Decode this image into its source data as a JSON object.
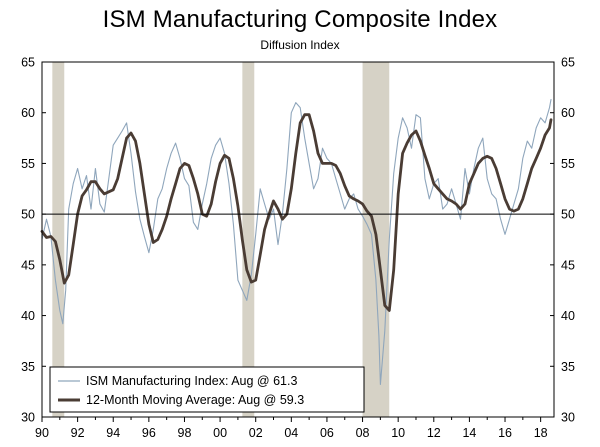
{
  "chart_data": {
    "type": "line",
    "title": "ISM Manufacturing Composite Index",
    "subtitle": "Diffusion Index",
    "xlabel": "",
    "ylabel": "",
    "ylim": [
      30,
      65
    ],
    "y_ticks": [
      "30",
      "35",
      "40",
      "45",
      "50",
      "55",
      "60",
      "65"
    ],
    "x_ticks": [
      "90",
      "92",
      "94",
      "96",
      "98",
      "00",
      "02",
      "04",
      "06",
      "08",
      "10",
      "12",
      "14",
      "16",
      "18"
    ],
    "x_tick_years": [
      1990,
      1992,
      1994,
      1996,
      1998,
      2000,
      2002,
      2004,
      2006,
      2008,
      2010,
      2012,
      2014,
      2016,
      2018
    ],
    "xlim": [
      1990.0,
      2018.75
    ],
    "reference_line": 50,
    "recessions": [
      [
        1990.58,
        1991.25
      ],
      [
        2001.25,
        2001.92
      ],
      [
        2008.0,
        2009.5
      ]
    ],
    "colors": {
      "ism": "#8fa6bc",
      "moving_average": "#4a3c34",
      "recession": "#d6d2c6",
      "axis": "#000000"
    },
    "series": [
      {
        "name": "ISM Manufacturing Index",
        "legend": "ISM Manufacturing Index: Aug @ 61.3",
        "x": [
          1990.0,
          1990.25,
          1990.5,
          1990.75,
          1991.0,
          1991.17,
          1991.33,
          1991.5,
          1991.75,
          1992.0,
          1992.25,
          1992.5,
          1992.75,
          1993.0,
          1993.25,
          1993.5,
          1993.75,
          1994.0,
          1994.25,
          1994.5,
          1994.75,
          1995.0,
          1995.25,
          1995.5,
          1995.75,
          1996.0,
          1996.25,
          1996.5,
          1996.75,
          1997.0,
          1997.25,
          1997.5,
          1997.75,
          1998.0,
          1998.25,
          1998.5,
          1998.75,
          1999.0,
          1999.25,
          1999.5,
          1999.75,
          2000.0,
          2000.25,
          2000.5,
          2000.75,
          2001.0,
          2001.25,
          2001.5,
          2001.75,
          2002.0,
          2002.25,
          2002.5,
          2002.75,
          2003.0,
          2003.25,
          2003.5,
          2003.75,
          2004.0,
          2004.25,
          2004.5,
          2004.75,
          2005.0,
          2005.25,
          2005.5,
          2005.75,
          2006.0,
          2006.25,
          2006.5,
          2006.75,
          2007.0,
          2007.25,
          2007.5,
          2007.75,
          2008.0,
          2008.25,
          2008.5,
          2008.75,
          2008.92,
          2009.0,
          2009.25,
          2009.5,
          2009.75,
          2010.0,
          2010.25,
          2010.5,
          2010.75,
          2011.0,
          2011.25,
          2011.5,
          2011.75,
          2012.0,
          2012.25,
          2012.5,
          2012.75,
          2013.0,
          2013.25,
          2013.5,
          2013.75,
          2014.0,
          2014.25,
          2014.5,
          2014.75,
          2015.0,
          2015.25,
          2015.5,
          2015.75,
          2016.0,
          2016.25,
          2016.5,
          2016.75,
          2017.0,
          2017.25,
          2017.5,
          2017.75,
          2018.0,
          2018.25,
          2018.5,
          2018.58
        ],
        "y": [
          47.5,
          49.5,
          47.8,
          43.5,
          40.5,
          39.2,
          42.5,
          50.5,
          53.0,
          54.5,
          52.5,
          53.8,
          50.5,
          54.5,
          51.0,
          50.2,
          53.5,
          56.8,
          57.5,
          58.2,
          59.0,
          56.0,
          52.2,
          49.5,
          47.8,
          46.2,
          48.5,
          51.5,
          52.5,
          54.5,
          56.0,
          57.0,
          55.5,
          53.5,
          52.8,
          49.2,
          48.5,
          51.0,
          53.0,
          55.5,
          56.8,
          57.5,
          56.0,
          53.0,
          49.0,
          43.5,
          42.5,
          41.5,
          44.0,
          48.0,
          52.5,
          51.0,
          49.5,
          50.5,
          47.0,
          50.0,
          54.5,
          60.0,
          61.0,
          60.5,
          57.5,
          55.0,
          52.5,
          53.5,
          56.5,
          55.5,
          55.0,
          53.5,
          52.0,
          50.5,
          51.5,
          52.0,
          50.5,
          49.8,
          49.0,
          48.0,
          43.5,
          38.0,
          33.2,
          38.5,
          47.5,
          54.0,
          57.5,
          59.5,
          58.5,
          56.5,
          59.8,
          59.5,
          53.5,
          51.5,
          53.0,
          53.5,
          50.5,
          51.0,
          52.5,
          51.0,
          49.5,
          54.5,
          52.0,
          54.5,
          56.5,
          57.5,
          53.5,
          52.0,
          51.5,
          49.5,
          48.0,
          49.5,
          51.0,
          52.5,
          55.5,
          57.2,
          56.5,
          58.5,
          59.5,
          59.0,
          60.5,
          61.3
        ]
      },
      {
        "name": "12-Month Moving Average",
        "legend": "12-Month Moving Average: Aug @ 59.3",
        "x": [
          1990.0,
          1990.25,
          1990.5,
          1990.75,
          1991.0,
          1991.25,
          1991.5,
          1991.75,
          1992.0,
          1992.25,
          1992.5,
          1992.75,
          1993.0,
          1993.25,
          1993.5,
          1993.75,
          1994.0,
          1994.25,
          1994.5,
          1994.75,
          1995.0,
          1995.25,
          1995.5,
          1995.75,
          1996.0,
          1996.25,
          1996.5,
          1996.75,
          1997.0,
          1997.25,
          1997.5,
          1997.75,
          1998.0,
          1998.25,
          1998.5,
          1998.75,
          1999.0,
          1999.25,
          1999.5,
          1999.75,
          2000.0,
          2000.25,
          2000.5,
          2000.75,
          2001.0,
          2001.25,
          2001.5,
          2001.75,
          2002.0,
          2002.25,
          2002.5,
          2002.75,
          2003.0,
          2003.25,
          2003.5,
          2003.75,
          2004.0,
          2004.25,
          2004.5,
          2004.75,
          2005.0,
          2005.25,
          2005.5,
          2005.75,
          2006.0,
          2006.25,
          2006.5,
          2006.75,
          2007.0,
          2007.25,
          2007.5,
          2007.75,
          2008.0,
          2008.25,
          2008.5,
          2008.75,
          2009.0,
          2009.25,
          2009.5,
          2009.75,
          2010.0,
          2010.25,
          2010.5,
          2010.75,
          2011.0,
          2011.25,
          2011.5,
          2011.75,
          2012.0,
          2012.25,
          2012.5,
          2012.75,
          2013.0,
          2013.25,
          2013.5,
          2013.75,
          2014.0,
          2014.25,
          2014.5,
          2014.75,
          2015.0,
          2015.25,
          2015.5,
          2015.75,
          2016.0,
          2016.25,
          2016.5,
          2016.75,
          2017.0,
          2017.25,
          2017.5,
          2017.75,
          2018.0,
          2018.25,
          2018.5,
          2018.58
        ],
        "y": [
          48.3,
          47.7,
          47.8,
          47.3,
          45.5,
          43.2,
          44.0,
          47.0,
          50.0,
          51.8,
          52.4,
          53.2,
          53.2,
          52.5,
          52.0,
          52.2,
          52.4,
          53.5,
          55.5,
          57.5,
          58.0,
          57.2,
          55.0,
          52.0,
          49.0,
          47.2,
          47.5,
          48.5,
          49.8,
          51.5,
          53.0,
          54.5,
          55.0,
          54.8,
          53.5,
          52.0,
          50.0,
          49.8,
          51.0,
          53.2,
          55.0,
          55.8,
          55.5,
          53.5,
          50.8,
          47.5,
          44.5,
          43.3,
          43.5,
          46.0,
          48.5,
          50.0,
          51.3,
          50.5,
          49.5,
          50.0,
          52.5,
          56.0,
          59.0,
          59.8,
          59.8,
          58.2,
          56.0,
          55.0,
          55.0,
          55.0,
          54.8,
          54.0,
          52.8,
          51.8,
          51.5,
          51.3,
          51.0,
          50.3,
          49.8,
          48.0,
          44.5,
          41.0,
          40.5,
          44.5,
          52.0,
          56.0,
          57.0,
          57.8,
          58.2,
          57.2,
          55.8,
          54.5,
          53.0,
          52.5,
          52.0,
          51.5,
          51.3,
          51.0,
          50.5,
          51.0,
          53.0,
          54.0,
          55.0,
          55.5,
          55.7,
          55.5,
          54.5,
          53.0,
          51.5,
          50.5,
          50.3,
          50.5,
          51.5,
          53.0,
          54.5,
          55.5,
          56.5,
          57.8,
          58.5,
          59.3
        ]
      }
    ]
  }
}
